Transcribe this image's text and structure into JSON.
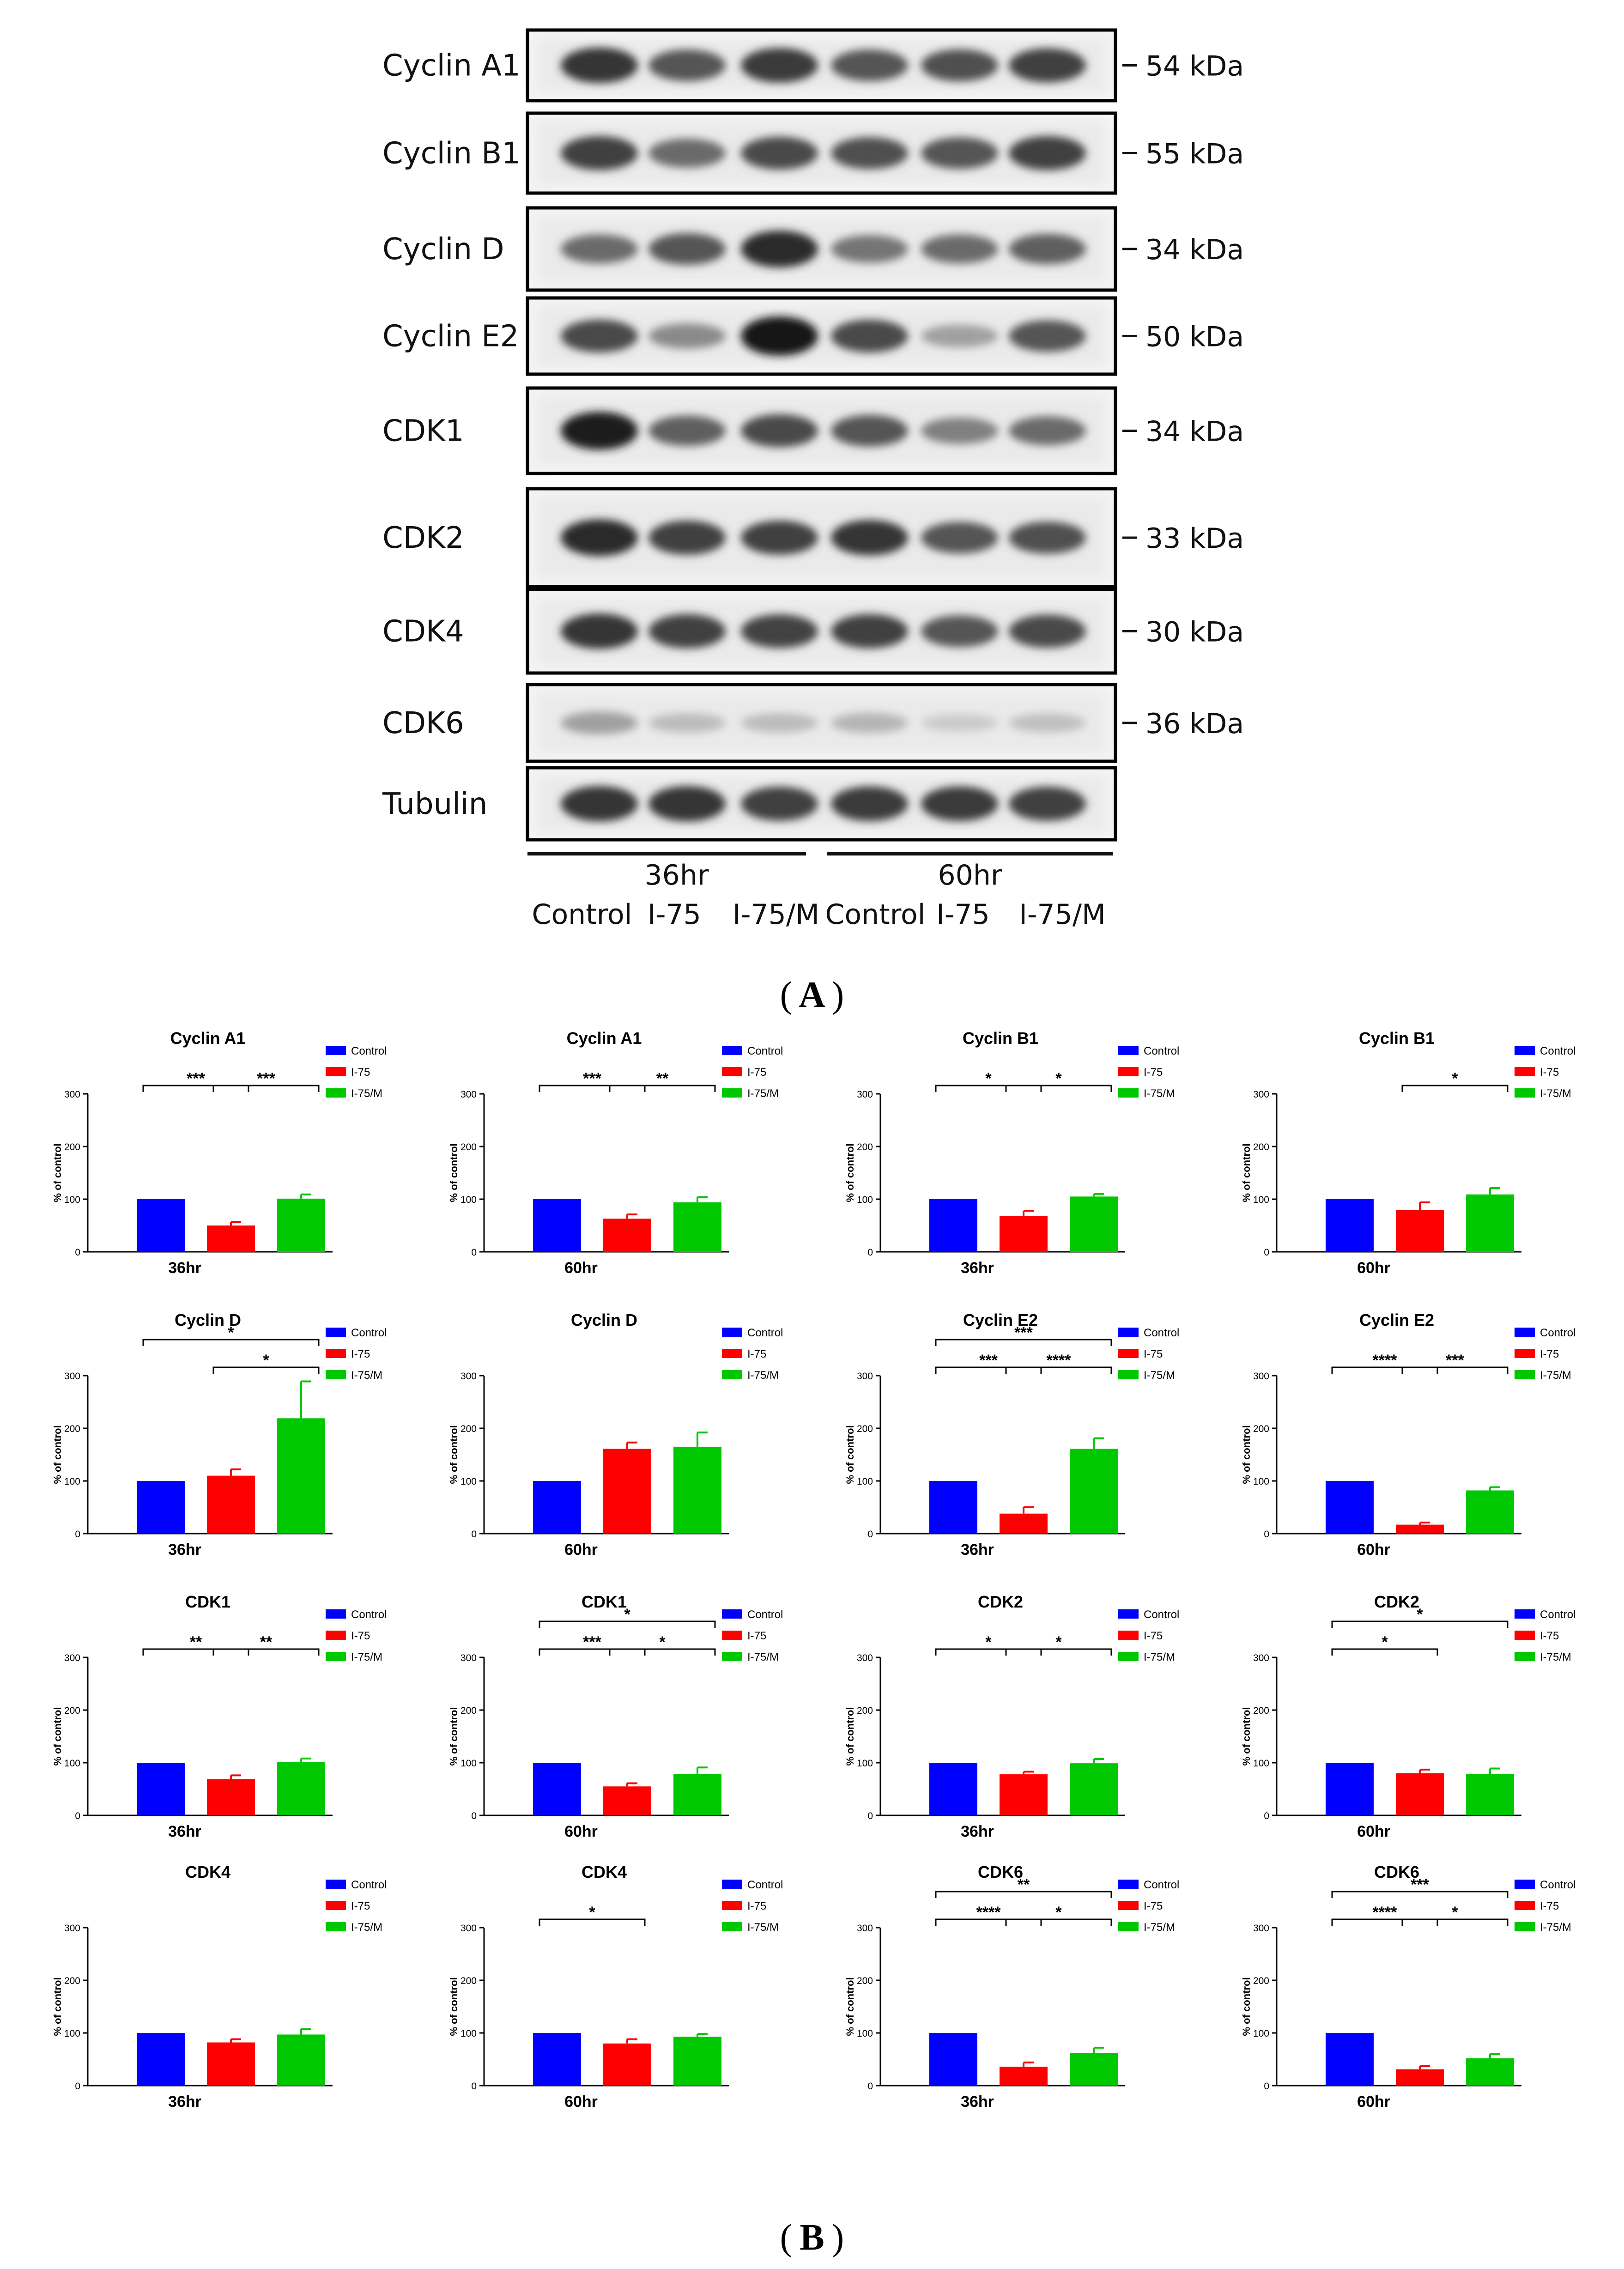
{
  "figure": {
    "panel_a_label": "A",
    "panel_b_label": "B",
    "legend_labels": [
      "Control",
      "I-75",
      "I-75/M"
    ],
    "colors": {
      "Control": "#0000ff",
      "I-75": "#ff0000",
      "I-75/M": "#00c800"
    },
    "y_axis_label": "% of control"
  },
  "western_blot": {
    "time_groups": [
      "36hr",
      "60hr"
    ],
    "lane_labels": [
      "Control",
      "I-75",
      "I-75/M",
      "Control",
      "I-75",
      "I-75/M"
    ],
    "rows": [
      {
        "protein": "Cyclin A1",
        "mw": "54 kDa",
        "intensity": [
          0.85,
          0.7,
          0.82,
          0.7,
          0.72,
          0.8
        ]
      },
      {
        "protein": "Cyclin B1",
        "mw": "55 kDa",
        "intensity": [
          0.8,
          0.6,
          0.75,
          0.72,
          0.7,
          0.8
        ]
      },
      {
        "protein": "Cyclin D",
        "mw": "34 kDa",
        "intensity": [
          0.6,
          0.7,
          0.9,
          0.55,
          0.6,
          0.65
        ]
      },
      {
        "protein": "Cyclin E2",
        "mw": "50 kDa",
        "intensity": [
          0.75,
          0.45,
          1.0,
          0.75,
          0.35,
          0.7
        ]
      },
      {
        "protein": "CDK1",
        "mw": "34 kDa",
        "intensity": [
          0.95,
          0.65,
          0.75,
          0.7,
          0.5,
          0.6
        ]
      },
      {
        "protein": "CDK2",
        "mw": "33 kDa",
        "intensity": [
          0.9,
          0.8,
          0.8,
          0.85,
          0.7,
          0.72
        ]
      },
      {
        "protein": "CDK4",
        "mw": "30 kDa",
        "intensity": [
          0.85,
          0.8,
          0.78,
          0.8,
          0.7,
          0.76
        ]
      },
      {
        "protein": "CDK6",
        "mw": "36 kDa",
        "intensity": [
          0.35,
          0.22,
          0.22,
          0.25,
          0.15,
          0.2
        ]
      },
      {
        "protein": "Tubulin",
        "mw": "",
        "intensity": [
          0.85,
          0.85,
          0.8,
          0.82,
          0.82,
          0.8
        ]
      }
    ]
  },
  "chart_data": [
    {
      "type": "bar",
      "title": "Cyclin A1",
      "xlabel": "36hr",
      "ylabel": "% of control",
      "ylim": [
        0,
        300
      ],
      "yticks": [
        0,
        100,
        200,
        300
      ],
      "categories": [
        "Control",
        "I-75",
        "I-75/M"
      ],
      "values": [
        100,
        50,
        101
      ],
      "errors": [
        0,
        7,
        8
      ],
      "significance": [
        {
          "from": 0,
          "to": 1,
          "label": "***",
          "level": 0
        },
        {
          "from": 1,
          "to": 2,
          "label": "***",
          "level": 0
        }
      ]
    },
    {
      "type": "bar",
      "title": "Cyclin A1",
      "xlabel": "60hr",
      "ylabel": "% of control",
      "ylim": [
        0,
        300
      ],
      "yticks": [
        0,
        100,
        200,
        300
      ],
      "categories": [
        "Control",
        "I-75",
        "I-75/M"
      ],
      "values": [
        100,
        63,
        94
      ],
      "errors": [
        0,
        8,
        10
      ],
      "significance": [
        {
          "from": 0,
          "to": 1,
          "label": "***",
          "level": 0
        },
        {
          "from": 1,
          "to": 2,
          "label": "**",
          "level": 0
        }
      ]
    },
    {
      "type": "bar",
      "title": "Cyclin B1",
      "xlabel": "36hr",
      "ylabel": "% of control",
      "ylim": [
        0,
        300
      ],
      "yticks": [
        0,
        100,
        200,
        300
      ],
      "categories": [
        "Control",
        "I-75",
        "I-75/M"
      ],
      "values": [
        100,
        68,
        105
      ],
      "errors": [
        0,
        10,
        5
      ],
      "significance": [
        {
          "from": 0,
          "to": 1,
          "label": "*",
          "level": 0
        },
        {
          "from": 1,
          "to": 2,
          "label": "*",
          "level": 0
        }
      ]
    },
    {
      "type": "bar",
      "title": "Cyclin B1",
      "xlabel": "60hr",
      "ylabel": "% of control",
      "ylim": [
        0,
        300
      ],
      "yticks": [
        0,
        100,
        200,
        300
      ],
      "categories": [
        "Control",
        "I-75",
        "I-75/M"
      ],
      "values": [
        100,
        79,
        109
      ],
      "errors": [
        0,
        15,
        12
      ],
      "significance": [
        {
          "from": 1,
          "to": 2,
          "label": "*",
          "level": 0
        }
      ]
    },
    {
      "type": "bar",
      "title": "Cyclin D",
      "xlabel": "36hr",
      "ylabel": "% of control",
      "ylim": [
        0,
        300
      ],
      "yticks": [
        0,
        100,
        200,
        300
      ],
      "categories": [
        "Control",
        "I-75",
        "I-75/M"
      ],
      "values": [
        100,
        110,
        219
      ],
      "errors": [
        0,
        12,
        70
      ],
      "significance": [
        {
          "from": 1,
          "to": 2,
          "label": "*",
          "level": 0
        },
        {
          "from": 0,
          "to": 2,
          "label": "*",
          "level": 1
        }
      ]
    },
    {
      "type": "bar",
      "title": "Cyclin D",
      "xlabel": "60hr",
      "ylabel": "% of control",
      "ylim": [
        0,
        300
      ],
      "yticks": [
        0,
        100,
        200,
        300
      ],
      "categories": [
        "Control",
        "I-75",
        "I-75/M"
      ],
      "values": [
        100,
        161,
        165
      ],
      "errors": [
        0,
        12,
        27
      ],
      "significance": []
    },
    {
      "type": "bar",
      "title": "Cyclin E2",
      "xlabel": "36hr",
      "ylabel": "% of control",
      "ylim": [
        0,
        300
      ],
      "yticks": [
        0,
        100,
        200,
        300
      ],
      "categories": [
        "Control",
        "I-75",
        "I-75/M"
      ],
      "values": [
        100,
        38,
        161
      ],
      "errors": [
        0,
        12,
        20
      ],
      "significance": [
        {
          "from": 0,
          "to": 1,
          "label": "***",
          "level": 0
        },
        {
          "from": 1,
          "to": 2,
          "label": "****",
          "level": 0
        },
        {
          "from": 0,
          "to": 2,
          "label": "***",
          "level": 1
        }
      ]
    },
    {
      "type": "bar",
      "title": "Cyclin E2",
      "xlabel": "60hr",
      "ylabel": "% of control",
      "ylim": [
        0,
        300
      ],
      "yticks": [
        0,
        100,
        200,
        300
      ],
      "categories": [
        "Control",
        "I-75",
        "I-75/M"
      ],
      "values": [
        100,
        17,
        82
      ],
      "errors": [
        0,
        4,
        6
      ],
      "significance": [
        {
          "from": 0,
          "to": 1,
          "label": "****",
          "level": 0
        },
        {
          "from": 1,
          "to": 2,
          "label": "***",
          "level": 0
        }
      ]
    },
    {
      "type": "bar",
      "title": "CDK1",
      "xlabel": "36hr",
      "ylabel": "% of control",
      "ylim": [
        0,
        300
      ],
      "yticks": [
        0,
        100,
        200,
        300
      ],
      "categories": [
        "Control",
        "I-75",
        "I-75/M"
      ],
      "values": [
        100,
        69,
        101
      ],
      "errors": [
        0,
        7,
        7
      ],
      "significance": [
        {
          "from": 0,
          "to": 1,
          "label": "**",
          "level": 0
        },
        {
          "from": 1,
          "to": 2,
          "label": "**",
          "level": 0
        }
      ]
    },
    {
      "type": "bar",
      "title": "CDK1",
      "xlabel": "60hr",
      "ylabel": "% of control",
      "ylim": [
        0,
        300
      ],
      "yticks": [
        0,
        100,
        200,
        300
      ],
      "categories": [
        "Control",
        "I-75",
        "I-75/M"
      ],
      "values": [
        100,
        55,
        79
      ],
      "errors": [
        0,
        6,
        12
      ],
      "significance": [
        {
          "from": 0,
          "to": 1,
          "label": "***",
          "level": 0
        },
        {
          "from": 1,
          "to": 2,
          "label": "*",
          "level": 0
        },
        {
          "from": 0,
          "to": 2,
          "label": "*",
          "level": 1
        }
      ]
    },
    {
      "type": "bar",
      "title": "CDK2",
      "xlabel": "36hr",
      "ylabel": "% of control",
      "ylim": [
        0,
        300
      ],
      "yticks": [
        0,
        100,
        200,
        300
      ],
      "categories": [
        "Control",
        "I-75",
        "I-75/M"
      ],
      "values": [
        100,
        78,
        99
      ],
      "errors": [
        0,
        5,
        8
      ],
      "significance": [
        {
          "from": 0,
          "to": 1,
          "label": "*",
          "level": 0
        },
        {
          "from": 1,
          "to": 2,
          "label": "*",
          "level": 0
        }
      ]
    },
    {
      "type": "bar",
      "title": "CDK2",
      "xlabel": "60hr",
      "ylabel": "% of control",
      "ylim": [
        0,
        300
      ],
      "yticks": [
        0,
        100,
        200,
        300
      ],
      "categories": [
        "Control",
        "I-75",
        "I-75/M"
      ],
      "values": [
        100,
        80,
        79
      ],
      "errors": [
        0,
        7,
        10
      ],
      "significance": [
        {
          "from": 0,
          "to": 1,
          "label": "*",
          "level": 0
        },
        {
          "from": 0,
          "to": 2,
          "label": "*",
          "level": 1
        }
      ]
    },
    {
      "type": "bar",
      "title": "CDK4",
      "xlabel": "36hr",
      "ylabel": "% of control",
      "ylim": [
        0,
        300
      ],
      "yticks": [
        0,
        100,
        200,
        300
      ],
      "categories": [
        "Control",
        "I-75",
        "I-75/M"
      ],
      "values": [
        100,
        82,
        97
      ],
      "errors": [
        0,
        6,
        10
      ],
      "significance": []
    },
    {
      "type": "bar",
      "title": "CDK4",
      "xlabel": "60hr",
      "ylabel": "% of control",
      "ylim": [
        0,
        300
      ],
      "yticks": [
        0,
        100,
        200,
        300
      ],
      "categories": [
        "Control",
        "I-75",
        "I-75/M"
      ],
      "values": [
        100,
        80,
        93
      ],
      "errors": [
        0,
        8,
        5
      ],
      "significance": [
        {
          "from": 0,
          "to": 1,
          "label": "*",
          "level": 0
        }
      ]
    },
    {
      "type": "bar",
      "title": "CDK6",
      "xlabel": "36hr",
      "ylabel": "% of control",
      "ylim": [
        0,
        300
      ],
      "yticks": [
        0,
        100,
        200,
        300
      ],
      "categories": [
        "Control",
        "I-75",
        "I-75/M"
      ],
      "values": [
        100,
        36,
        62
      ],
      "errors": [
        0,
        8,
        10
      ],
      "significance": [
        {
          "from": 0,
          "to": 1,
          "label": "****",
          "level": 0
        },
        {
          "from": 1,
          "to": 2,
          "label": "*",
          "level": 0
        },
        {
          "from": 0,
          "to": 2,
          "label": "**",
          "level": 1
        }
      ]
    },
    {
      "type": "bar",
      "title": "CDK6",
      "xlabel": "60hr",
      "ylabel": "% of control",
      "ylim": [
        0,
        300
      ],
      "yticks": [
        0,
        100,
        200,
        300
      ],
      "categories": [
        "Control",
        "I-75",
        "I-75/M"
      ],
      "values": [
        100,
        31,
        52
      ],
      "errors": [
        0,
        6,
        8
      ],
      "significance": [
        {
          "from": 0,
          "to": 1,
          "label": "****",
          "level": 0
        },
        {
          "from": 1,
          "to": 2,
          "label": "*",
          "level": 0
        },
        {
          "from": 0,
          "to": 2,
          "label": "***",
          "level": 1
        }
      ]
    }
  ]
}
